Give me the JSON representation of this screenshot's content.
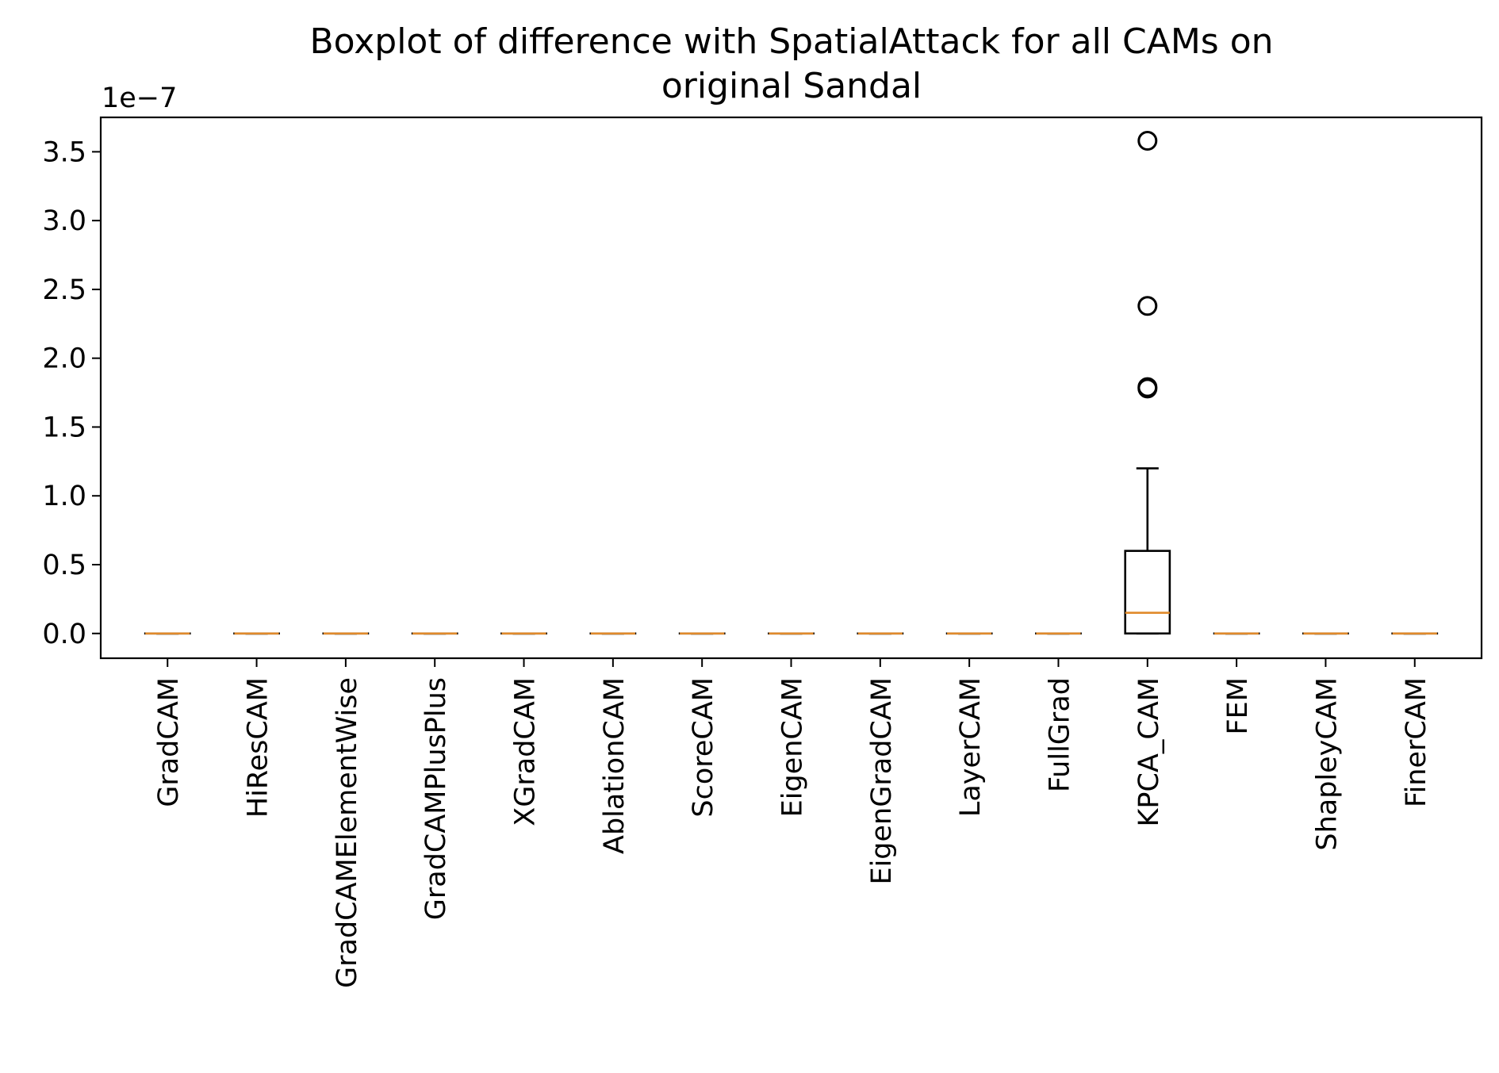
{
  "chart_data": {
    "type": "boxplot",
    "title_lines": [
      "Boxplot of difference with SpatialAttack for all CAMs on",
      "original Sandal"
    ],
    "xlabel": "",
    "ylabel": "",
    "y_offset_label": "1e−7",
    "y_scale_exponent": -7,
    "ylim": [
      -0.18,
      3.75
    ],
    "yticks": [
      0.0,
      0.5,
      1.0,
      1.5,
      2.0,
      2.5,
      3.0,
      3.5
    ],
    "ytick_labels": [
      "0.0",
      "0.5",
      "1.0",
      "1.5",
      "2.0",
      "2.5",
      "3.0",
      "3.5"
    ],
    "grid": false,
    "categories": [
      "GradCAM",
      "HiResCAM",
      "GradCAMElementWise",
      "GradCAMPlusPlus",
      "XGradCAM",
      "AblationCAM",
      "ScoreCAM",
      "EigenCAM",
      "EigenGradCAM",
      "LayerCAM",
      "FullGrad",
      "KPCA_CAM",
      "FEM",
      "ShapleyCAM",
      "FinerCAM"
    ],
    "boxes": [
      {
        "whislo": 0,
        "q1": 0,
        "median": 0,
        "q3": 0,
        "whishi": 0,
        "fliers": []
      },
      {
        "whislo": 0,
        "q1": 0,
        "median": 0,
        "q3": 0,
        "whishi": 0,
        "fliers": []
      },
      {
        "whislo": 0,
        "q1": 0,
        "median": 0,
        "q3": 0,
        "whishi": 0,
        "fliers": []
      },
      {
        "whislo": 0,
        "q1": 0,
        "median": 0,
        "q3": 0,
        "whishi": 0,
        "fliers": []
      },
      {
        "whislo": 0,
        "q1": 0,
        "median": 0,
        "q3": 0,
        "whishi": 0,
        "fliers": []
      },
      {
        "whislo": 0,
        "q1": 0,
        "median": 0,
        "q3": 0,
        "whishi": 0,
        "fliers": []
      },
      {
        "whislo": 0,
        "q1": 0,
        "median": 0,
        "q3": 0,
        "whishi": 0,
        "fliers": []
      },
      {
        "whislo": 0,
        "q1": 0,
        "median": 0,
        "q3": 0,
        "whishi": 0,
        "fliers": []
      },
      {
        "whislo": 0,
        "q1": 0,
        "median": 0,
        "q3": 0,
        "whishi": 0,
        "fliers": []
      },
      {
        "whislo": 0,
        "q1": 0,
        "median": 0,
        "q3": 0,
        "whishi": 0,
        "fliers": []
      },
      {
        "whislo": 0,
        "q1": 0,
        "median": 0,
        "q3": 0,
        "whishi": 0,
        "fliers": []
      },
      {
        "whislo": 0,
        "q1": 0,
        "median": 0.15,
        "q3": 0.6,
        "whishi": 1.2,
        "fliers": [
          3.58,
          2.38,
          1.78,
          1.79
        ]
      },
      {
        "whislo": 0,
        "q1": 0,
        "median": 0,
        "q3": 0,
        "whishi": 0,
        "fliers": []
      },
      {
        "whislo": 0,
        "q1": 0,
        "median": 0,
        "q3": 0,
        "whishi": 0,
        "fliers": []
      },
      {
        "whislo": 0,
        "q1": 0,
        "median": 0,
        "q3": 0,
        "whishi": 0,
        "fliers": []
      }
    ],
    "colors": {
      "box": "#000000",
      "median": "#e08a2b",
      "flier": "#000000"
    }
  }
}
